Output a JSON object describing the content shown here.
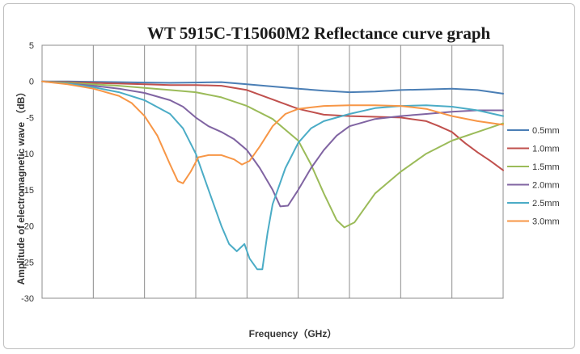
{
  "chart_data": {
    "type": "line",
    "title": "WT 5915C-T15060M2 Reflectance curve graph",
    "xlabel": "Frequency（GHz）",
    "ylabel": "Amplitude of electromagnetic wave （dB）",
    "xlim": [
      0,
      18
    ],
    "ylim": [
      -30,
      5
    ],
    "yticks": [
      "5",
      "0",
      "-5",
      "-10",
      "-15",
      "-20",
      "-25",
      "-30"
    ],
    "grid": "vertical",
    "legend_position": "right",
    "series": [
      {
        "name": "0.5mm",
        "color": "#4a7eb5",
        "x": [
          0,
          1,
          2,
          3,
          4,
          5,
          6,
          7,
          8,
          9,
          10,
          11,
          12,
          13,
          14,
          15,
          16,
          17,
          18
        ],
        "y": [
          0,
          0,
          -0.05,
          -0.1,
          -0.15,
          -0.2,
          -0.15,
          -0.1,
          -0.4,
          -0.7,
          -1.0,
          -1.3,
          -1.5,
          -1.4,
          -1.2,
          -1.1,
          -1.0,
          -1.2,
          -1.7
        ]
      },
      {
        "name": "1.0mm",
        "color": "#c0504d",
        "x": [
          0,
          1,
          2,
          3,
          4,
          5,
          6,
          7,
          8,
          9,
          10,
          11,
          12,
          13,
          14,
          15,
          15.5,
          16,
          16.5,
          17,
          17.5,
          18
        ],
        "y": [
          0,
          -0.1,
          -0.2,
          -0.3,
          -0.4,
          -0.5,
          -0.5,
          -0.6,
          -1.2,
          -2.5,
          -3.8,
          -4.6,
          -4.8,
          -4.9,
          -5.0,
          -5.5,
          -6.2,
          -7.0,
          -8.5,
          -9.8,
          -11.0,
          -12.3
        ]
      },
      {
        "name": "1.5mm",
        "color": "#9bbb59",
        "x": [
          0,
          1,
          2,
          3,
          4,
          5,
          6,
          7,
          8,
          9,
          10,
          10.5,
          11,
          11.5,
          11.8,
          12.2,
          12.6,
          13,
          13.5,
          14,
          15,
          16,
          17,
          18
        ],
        "y": [
          0,
          -0.2,
          -0.4,
          -0.6,
          -0.9,
          -1.2,
          -1.5,
          -2.2,
          -3.4,
          -5.2,
          -8.2,
          -11.5,
          -15.5,
          -19.2,
          -20.2,
          -19.5,
          -17.5,
          -15.5,
          -14.0,
          -12.5,
          -10.0,
          -8.2,
          -7.0,
          -5.8
        ]
      },
      {
        "name": "2.0mm",
        "color": "#8064a2",
        "x": [
          0,
          1,
          2,
          3,
          4,
          5,
          5.5,
          6,
          6.5,
          7,
          7.5,
          8,
          8.5,
          9,
          9.3,
          9.6,
          10,
          10.5,
          11,
          11.5,
          12,
          13,
          14,
          15,
          16,
          17,
          18
        ],
        "y": [
          0,
          -0.3,
          -0.6,
          -1.0,
          -1.6,
          -2.6,
          -3.5,
          -5.0,
          -6.2,
          -7.0,
          -8.0,
          -9.5,
          -12.0,
          -15.0,
          -17.3,
          -17.2,
          -15.0,
          -12.0,
          -9.5,
          -7.5,
          -6.2,
          -5.2,
          -4.8,
          -4.5,
          -4.2,
          -4.0,
          -4.0
        ]
      },
      {
        "name": "2.5mm",
        "color": "#4bacc6",
        "x": [
          0,
          1,
          2,
          3,
          4,
          5,
          5.5,
          6,
          6.5,
          7,
          7.3,
          7.6,
          7.9,
          8.1,
          8.4,
          8.6,
          8.8,
          9,
          9.5,
          10,
          10.5,
          11,
          12,
          13,
          14,
          15,
          16,
          17,
          18
        ],
        "y": [
          0,
          -0.3,
          -0.8,
          -1.5,
          -2.6,
          -4.5,
          -6.5,
          -10.0,
          -15.0,
          -20.0,
          -22.5,
          -23.5,
          -22.5,
          -24.5,
          -26.0,
          -26.0,
          -21.0,
          -17.0,
          -12.0,
          -8.5,
          -6.5,
          -5.5,
          -4.5,
          -3.7,
          -3.4,
          -3.3,
          -3.5,
          -4.0,
          -4.8
        ]
      },
      {
        "name": "3.0mm",
        "color": "#f79646",
        "x": [
          0,
          1,
          2,
          3,
          3.5,
          4,
          4.5,
          5,
          5.3,
          5.5,
          5.8,
          6.1,
          6.5,
          7,
          7.5,
          7.8,
          8.1,
          8.5,
          9,
          9.5,
          10,
          11,
          12,
          13,
          14,
          15,
          16,
          17,
          18
        ],
        "y": [
          0,
          -0.4,
          -1.0,
          -2.0,
          -3.0,
          -4.8,
          -7.5,
          -11.5,
          -13.8,
          -14.1,
          -12.5,
          -10.5,
          -10.2,
          -10.2,
          -10.8,
          -11.5,
          -11.0,
          -9.0,
          -6.2,
          -4.5,
          -3.8,
          -3.4,
          -3.3,
          -3.3,
          -3.4,
          -3.8,
          -4.8,
          -5.5,
          -6.0
        ]
      }
    ]
  }
}
